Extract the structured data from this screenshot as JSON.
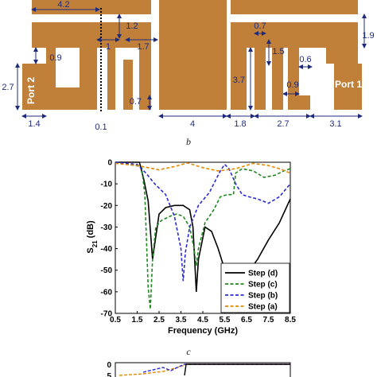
{
  "layout_panel": {
    "label": "b",
    "colors": {
      "copper": "#c0803a",
      "dimension": "#1f2b7a"
    },
    "ports": {
      "left": "Port 2",
      "right": "Port 1"
    },
    "dimensions": {
      "d_4_2": "4.2",
      "d_1_2": "1.2",
      "d_1": "1",
      "d_1_7": "1.7",
      "d_0_9_left": "0.9",
      "d_2_7_left": "2.7",
      "d_1_4": "1.4",
      "d_0_1": "0.1",
      "d_0_7_mid": "0.7",
      "d_4": "4",
      "d_1_8": "1.8",
      "d_3_7": "3.7",
      "d_0_7_right": "0.7",
      "d_1_5": "1.5",
      "d_0_6": "0.6",
      "d_0_9_right": "0.9",
      "d_1_9": "1.9",
      "d_2_7_bottom": "2.7",
      "d_3_1": "3.1"
    }
  },
  "chart_panel": {
    "label": "c",
    "chart_data": {
      "type": "line",
      "xlabel": "Frequency (GHz)",
      "ylabel": "S21 (dB)",
      "ylabel_main": "S",
      "ylabel_sub": "21",
      "ylabel_rest": " (dB)",
      "xlim": [
        0.5,
        8.5
      ],
      "ylim": [
        -70,
        0
      ],
      "xticks": [
        "0.5",
        "1.5",
        "2.5",
        "3.5",
        "4.5",
        "5.5",
        "6.5",
        "7.5",
        "8.5"
      ],
      "yticks": [
        "0",
        "-10",
        "-20",
        "-30",
        "-40",
        "-50",
        "-60",
        "-70"
      ],
      "legend_position": "bottom-right",
      "series": [
        {
          "name": "Step (d)",
          "color": "#000000",
          "dash": "solid",
          "x": [
            0.5,
            1.6,
            1.8,
            2.0,
            2.2,
            2.3,
            2.5,
            2.8,
            3.2,
            3.6,
            3.9,
            4.05,
            4.15,
            4.2,
            4.3,
            4.6,
            4.9,
            5.2,
            5.6,
            6.0,
            6.5,
            7.0,
            7.5,
            8.0,
            8.5
          ],
          "y": [
            0,
            0,
            -8,
            -18,
            -45,
            -38,
            -24,
            -21,
            -20,
            -20,
            -22,
            -30,
            -50,
            -60,
            -45,
            -30,
            -32,
            -40,
            -53,
            -56,
            -52,
            -45,
            -36,
            -28,
            -17
          ]
        },
        {
          "name": "Step (c)",
          "color": "#1e8a1e",
          "dash": "dashed",
          "x": [
            0.5,
            1.7,
            1.85,
            2.0,
            2.1,
            2.2,
            2.35,
            2.6,
            3.0,
            3.3,
            3.6,
            3.9,
            4.1,
            4.2,
            4.3,
            4.6,
            5.0,
            5.3,
            5.6,
            5.9,
            6.0,
            6.3,
            6.8,
            7.3,
            7.8,
            8.2,
            8.5
          ],
          "y": [
            0,
            -2,
            -15,
            -58,
            -68,
            -45,
            -30,
            -27,
            -25,
            -24,
            -25,
            -30,
            -40,
            -48,
            -40,
            -28,
            -22,
            -16,
            -15,
            -15,
            -5,
            -3,
            -4,
            -7,
            -6,
            -4,
            -3
          ]
        },
        {
          "name": "Step (b)",
          "color": "#2a2ad0",
          "dash": "dashed",
          "x": [
            0.5,
            1.5,
            1.9,
            2.3,
            2.8,
            3.2,
            3.5,
            3.6,
            3.7,
            3.9,
            4.3,
            4.8,
            5.3,
            5.5,
            5.7,
            6.0,
            6.3,
            6.6,
            7.0,
            7.5,
            8.0,
            8.5
          ],
          "y": [
            0,
            -1,
            -5,
            -10,
            -15,
            -25,
            -40,
            -55,
            -42,
            -30,
            -20,
            -14,
            -4,
            -1,
            -3,
            -10,
            -15,
            -16,
            -17,
            -19,
            -16,
            -10
          ]
        },
        {
          "name": "Step (a)",
          "color": "#e08a00",
          "dash": "dashed",
          "x": [
            0.5,
            1.5,
            2.5,
            3.2,
            3.8,
            4.5,
            5.2,
            6.0,
            6.8,
            7.5,
            8.0,
            8.5
          ],
          "y": [
            -0.5,
            -1.5,
            -3.5,
            -2.0,
            -0.3,
            -2.5,
            -4.0,
            -3.0,
            -0.5,
            -1.5,
            -3.0,
            -5.0
          ]
        }
      ]
    }
  },
  "bottom_panel": {
    "tick_0": "0",
    "tick_5": "5"
  }
}
